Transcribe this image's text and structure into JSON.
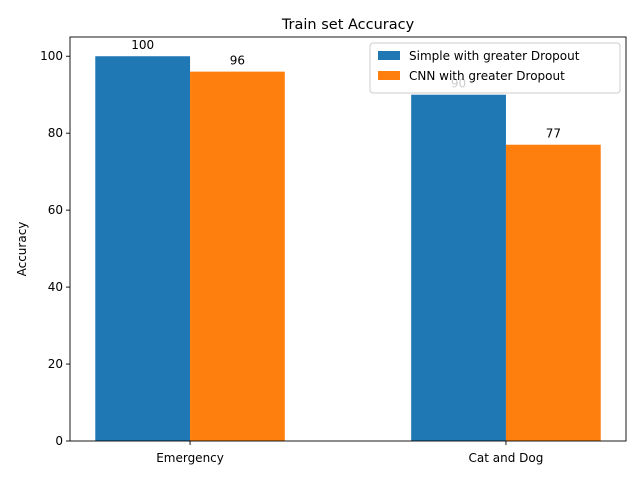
{
  "chart_data": {
    "type": "bar",
    "title": "Train set Accuracy",
    "xlabel": "",
    "ylabel": "Accuracy",
    "categories": [
      "Emergency",
      "Cat and Dog"
    ],
    "series": [
      {
        "name": "Simple with greater Dropout",
        "values": [
          100,
          90
        ],
        "color": "#1f77b4"
      },
      {
        "name": "CNN with greater Dropout",
        "values": [
          96,
          77
        ],
        "color": "#ff7f0e"
      }
    ],
    "ylim": [
      0,
      105
    ],
    "yticks": [
      0,
      20,
      40,
      60,
      80,
      100
    ],
    "grid": false,
    "legend": "top-right"
  }
}
